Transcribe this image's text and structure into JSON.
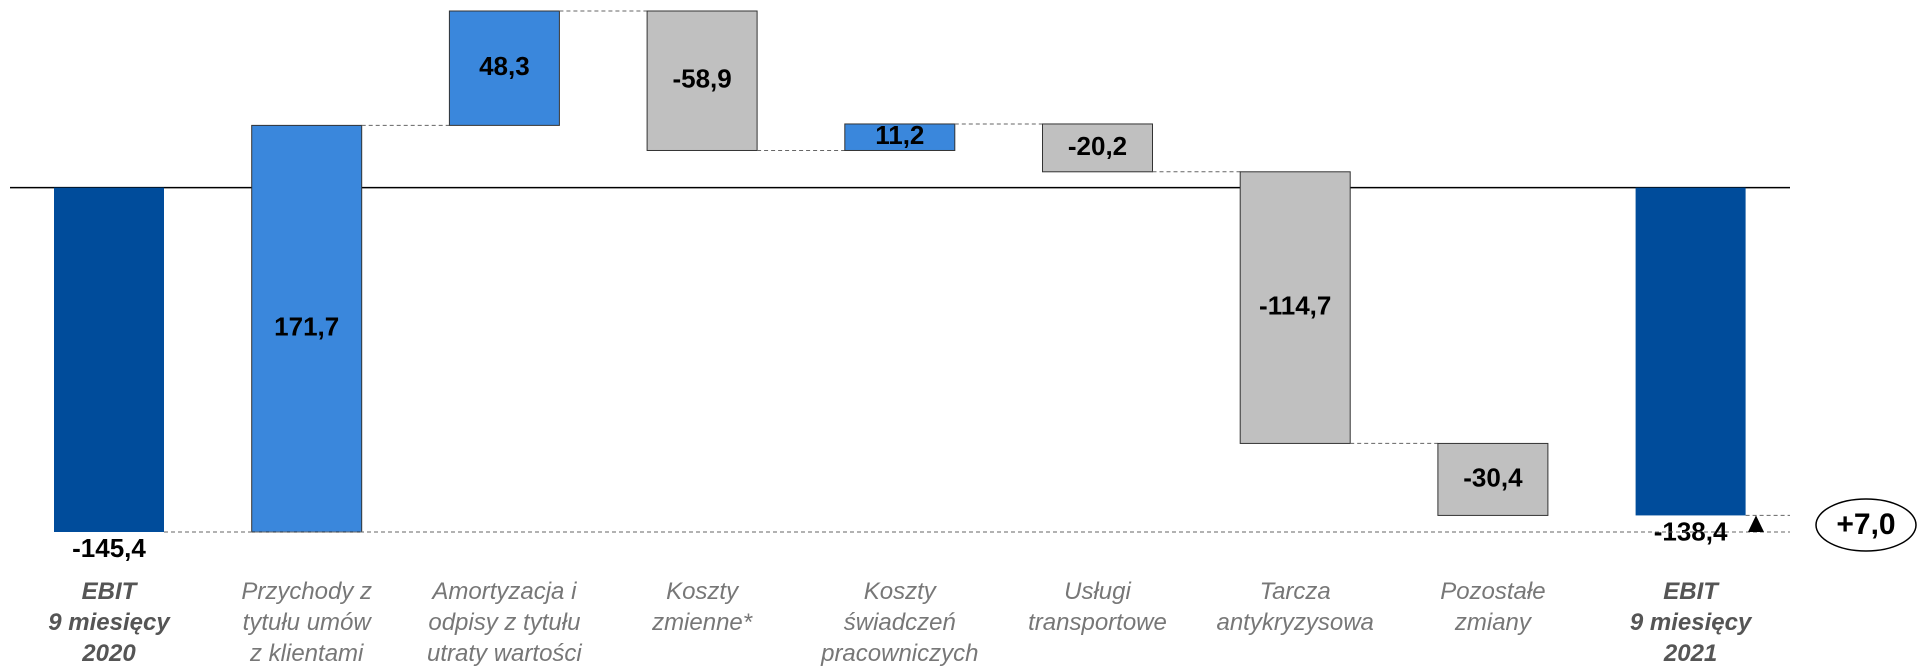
{
  "chart_data": {
    "type": "waterfall",
    "categories": [
      "EBIT\n9 miesięcy\n2020",
      "Przychody z\ntytułu umów\nz klientami",
      "Amortyzacja i\nodpisy z tytułu\nutraty wartości",
      "Koszty\nzmienne*",
      "Koszty\nświadczeń\npracowniczych",
      "Usługi\ntransportowe",
      "Tarcza\nantykryzysowa",
      "Pozostałe\nzmiany",
      "EBIT\n9 miesięcy\n2021"
    ],
    "measure": [
      "total",
      "relative",
      "relative",
      "relative",
      "relative",
      "relative",
      "relative",
      "relative",
      "total"
    ],
    "values": [
      -145.4,
      171.7,
      48.3,
      -58.9,
      11.2,
      -20.2,
      -114.7,
      -30.4,
      -138.4
    ],
    "value_labels": [
      "-145,4",
      "171,7",
      "48,3",
      "-58,9",
      "11,2",
      "-20,2",
      "-114,7",
      "-30,4",
      "-138,4"
    ],
    "colors": {
      "total": "#004c9b",
      "increase": "#3a87dc",
      "decrease": "#c0c0c0"
    },
    "annotation": "+7,0"
  }
}
